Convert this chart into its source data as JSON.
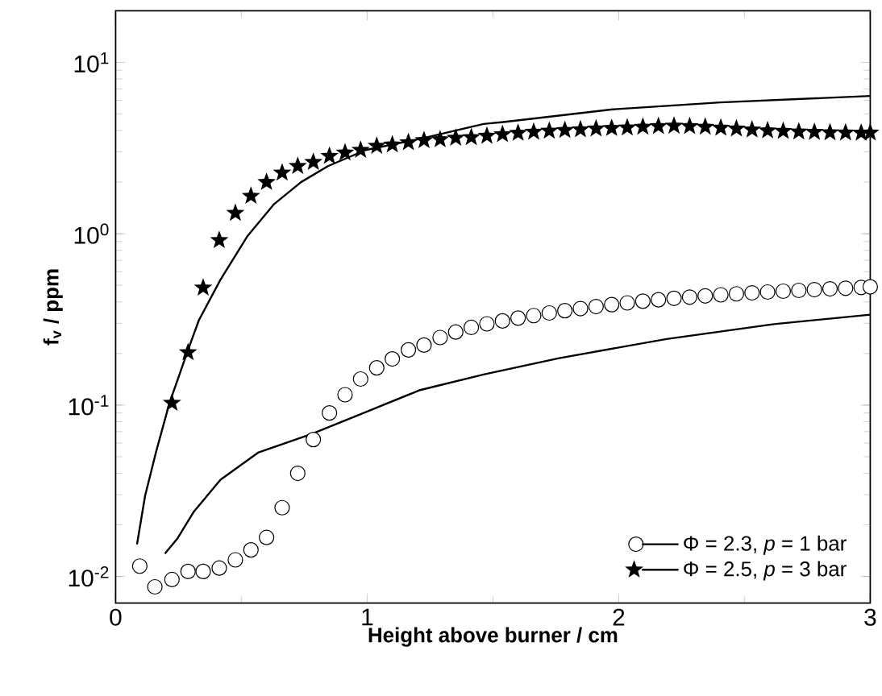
{
  "chart_data": {
    "type": "scatter",
    "xlabel": "Height above burner / cm",
    "ylabel": "f$_{v}$ / ppm",
    "log": "y",
    "xlim": [
      0,
      3
    ],
    "ylim": [
      0.007,
      20
    ],
    "xticks": [
      0,
      1,
      2,
      3
    ],
    "yticks": [
      {
        "value": 0.01,
        "label": "10$^{-2}$"
      },
      {
        "value": 0.1,
        "label": "10$^{-1}$"
      },
      {
        "value": 1,
        "label": "10$^{0}$"
      },
      {
        "value": 10,
        "label": "10$^{1}$"
      }
    ],
    "legend": "bottom right",
    "grid": false,
    "series": [
      {
        "marker": "circle",
        "color": "#000000",
        "x": [
          0.096,
          0.156,
          0.224,
          0.288,
          0.348,
          0.412,
          0.476,
          0.538,
          0.6,
          0.662,
          0.724,
          0.786,
          0.85,
          0.912,
          0.974,
          1.038,
          1.1,
          1.164,
          1.226,
          1.29,
          1.352,
          1.414,
          1.476,
          1.538,
          1.6,
          1.662,
          1.724,
          1.786,
          1.848,
          1.91,
          1.972,
          2.034,
          2.096,
          2.158,
          2.22,
          2.282,
          2.344,
          2.406,
          2.468,
          2.53,
          2.592,
          2.654,
          2.716,
          2.778,
          2.84,
          2.902,
          2.964,
          3.0
        ],
        "values": [
          0.0115,
          0.0087,
          0.0096,
          0.0107,
          0.0107,
          0.0112,
          0.0125,
          0.0143,
          0.0169,
          0.0252,
          0.04,
          0.063,
          0.09,
          0.115,
          0.142,
          0.165,
          0.186,
          0.21,
          0.224,
          0.248,
          0.267,
          0.284,
          0.298,
          0.31,
          0.322,
          0.333,
          0.345,
          0.356,
          0.366,
          0.376,
          0.386,
          0.395,
          0.404,
          0.412,
          0.42,
          0.427,
          0.434,
          0.44,
          0.446,
          0.452,
          0.457,
          0.462,
          0.467,
          0.472,
          0.477,
          0.481,
          0.486,
          0.49
        ]
      },
      {
        "type": "line",
        "name": "Φ = 2.3, *p* = 1 bar",
        "line_style": "solid",
        "color": "#000000",
        "x": [
          0.196,
          0.245,
          0.31,
          0.417,
          0.566,
          0.78,
          0.994,
          1.207,
          1.463,
          1.763,
          2.19,
          2.617,
          3.0
        ],
        "values": [
          0.0136,
          0.0166,
          0.0238,
          0.0367,
          0.0528,
          0.068,
          0.091,
          0.122,
          0.151,
          0.188,
          0.243,
          0.297,
          0.337
        ]
      },
      {
        "marker": "star",
        "color": "#000000",
        "x": [
          0.224,
          0.288,
          0.348,
          0.412,
          0.476,
          0.538,
          0.6,
          0.662,
          0.724,
          0.786,
          0.85,
          0.912,
          0.974,
          1.038,
          1.1,
          1.164,
          1.226,
          1.29,
          1.352,
          1.414,
          1.476,
          1.538,
          1.6,
          1.662,
          1.724,
          1.786,
          1.848,
          1.91,
          1.972,
          2.034,
          2.096,
          2.158,
          2.22,
          2.282,
          2.344,
          2.406,
          2.468,
          2.53,
          2.592,
          2.654,
          2.716,
          2.778,
          2.84,
          2.902,
          2.964,
          3.0
        ],
        "values": [
          0.103,
          0.203,
          0.484,
          0.916,
          1.32,
          1.66,
          2.0,
          2.27,
          2.48,
          2.62,
          2.84,
          2.97,
          3.08,
          3.25,
          3.31,
          3.41,
          3.51,
          3.55,
          3.62,
          3.65,
          3.72,
          3.8,
          3.87,
          3.93,
          3.98,
          4.02,
          4.06,
          4.1,
          4.13,
          4.16,
          4.2,
          4.24,
          4.26,
          4.24,
          4.2,
          4.15,
          4.1,
          4.05,
          4.0,
          3.97,
          3.94,
          3.92,
          3.9,
          3.89,
          3.88,
          3.89
        ]
      },
      {
        "type": "line",
        "name": "Φ = 2.5, *p* = 3 bar",
        "line_style": "solid",
        "color": "#000000",
        "x": [
          0.085,
          0.117,
          0.16,
          0.213,
          0.288,
          0.331,
          0.417,
          0.523,
          0.63,
          0.737,
          0.844,
          0.994,
          1.207,
          1.463,
          1.549,
          1.976,
          2.404,
          3.0
        ],
        "values": [
          0.0154,
          0.0295,
          0.0528,
          0.1016,
          0.21,
          0.313,
          0.54,
          0.964,
          1.49,
          2.0,
          2.48,
          3.08,
          3.57,
          4.37,
          4.5,
          5.32,
          5.84,
          6.37
        ]
      }
    ]
  }
}
